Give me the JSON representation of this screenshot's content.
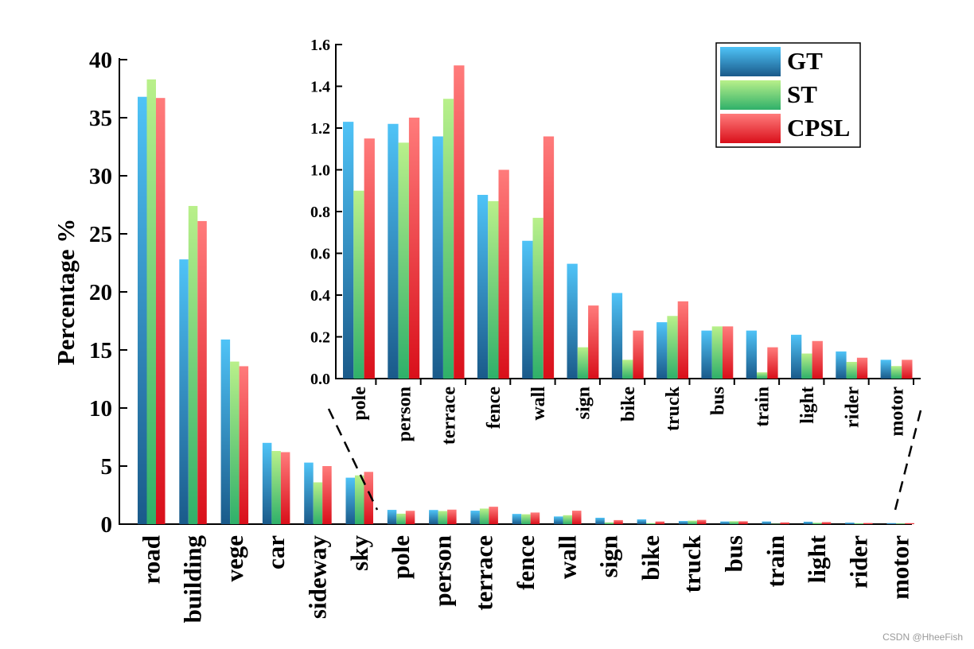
{
  "chart_data": [
    {
      "type": "bar",
      "ylabel": "Percentage %",
      "xlabel": "",
      "ylim": [
        0,
        40
      ],
      "yticks": [
        0,
        5,
        10,
        15,
        20,
        25,
        30,
        35,
        40
      ],
      "categories": [
        "road",
        "building",
        "vege",
        "car",
        "sideway",
        "sky",
        "pole",
        "person",
        "terrace",
        "fence",
        "wall",
        "sign",
        "bike",
        "truck",
        "bus",
        "train",
        "light",
        "rider",
        "motor"
      ],
      "series": [
        {
          "name": "GT",
          "values": [
            36.8,
            22.8,
            15.9,
            7.0,
            5.3,
            4.0,
            1.23,
            1.22,
            1.16,
            0.88,
            0.66,
            0.55,
            0.41,
            0.27,
            0.23,
            0.23,
            0.21,
            0.13,
            0.09
          ]
        },
        {
          "name": "ST",
          "values": [
            38.3,
            27.4,
            14.0,
            6.3,
            3.6,
            4.2,
            0.9,
            1.13,
            1.34,
            0.85,
            0.77,
            0.15,
            0.09,
            0.3,
            0.25,
            0.03,
            0.12,
            0.08,
            0.06
          ]
        },
        {
          "name": "CPSL",
          "values": [
            36.7,
            26.1,
            13.6,
            6.2,
            5.0,
            4.5,
            1.15,
            1.25,
            1.5,
            1.0,
            1.16,
            0.35,
            0.23,
            0.37,
            0.25,
            0.15,
            0.18,
            0.1,
            0.09
          ]
        }
      ]
    },
    {
      "type": "bar",
      "xlabel": "",
      "ylabel": "",
      "ylim": [
        0,
        1.6
      ],
      "yticks": [
        "0.0",
        "0.2",
        "0.4",
        "0.6",
        "0.8",
        "1.0",
        "1.2",
        "1.4",
        "1.6"
      ],
      "categories": [
        "pole",
        "person",
        "terrace",
        "fence",
        "wall",
        "sign",
        "bike",
        "truck",
        "bus",
        "train",
        "light",
        "rider",
        "motor"
      ],
      "series": [
        {
          "name": "GT",
          "values": [
            1.23,
            1.22,
            1.16,
            0.88,
            0.66,
            0.55,
            0.41,
            0.27,
            0.23,
            0.23,
            0.21,
            0.13,
            0.09
          ]
        },
        {
          "name": "ST",
          "values": [
            0.9,
            1.13,
            1.34,
            0.85,
            0.77,
            0.15,
            0.09,
            0.3,
            0.25,
            0.03,
            0.12,
            0.08,
            0.06
          ]
        },
        {
          "name": "CPSL",
          "values": [
            1.15,
            1.25,
            1.5,
            1.0,
            1.16,
            0.35,
            0.23,
            0.37,
            0.25,
            0.15,
            0.18,
            0.1,
            0.09
          ]
        }
      ],
      "legend": {
        "placement": "top-right",
        "entries": [
          "GT",
          "ST",
          "CPSL"
        ]
      }
    }
  ],
  "colors": {
    "GT": [
      "#4fc3f7",
      "#1a5a8a"
    ],
    "ST": [
      "#b9f08a",
      "#2fb06a"
    ],
    "CPSL": [
      "#ff7b7b",
      "#d90f1a"
    ]
  },
  "watermark": "CSDN @HheeFish"
}
